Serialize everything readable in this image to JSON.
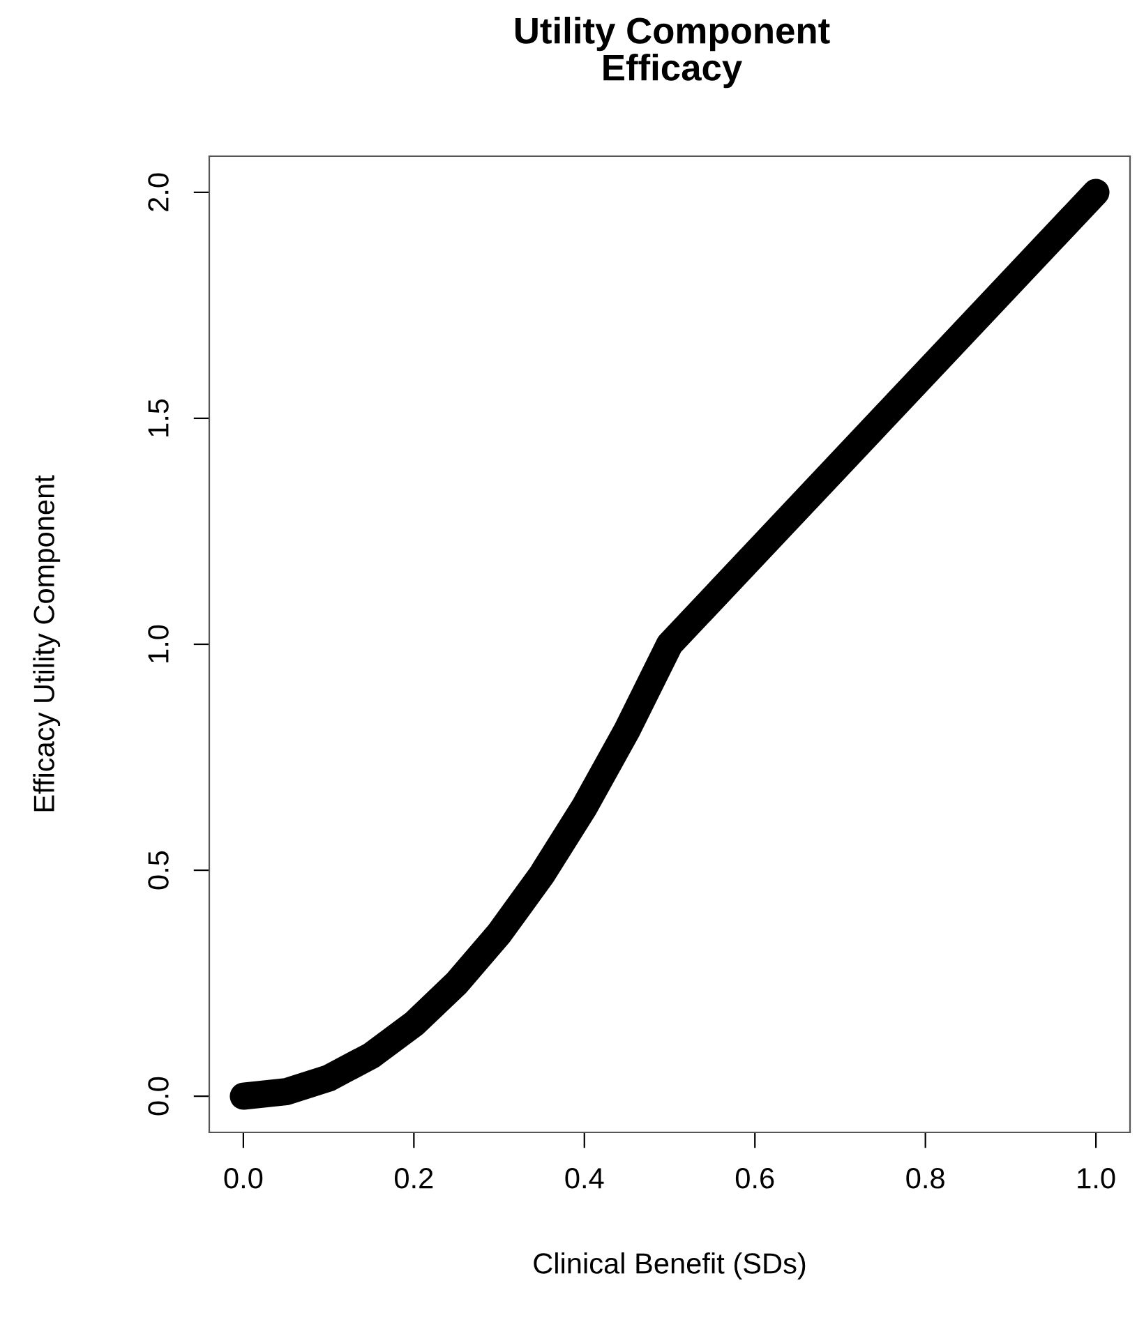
{
  "chart_data": {
    "type": "line",
    "title": "Utility Component\nEfficacy",
    "xlabel": "Clinical Benefit (SDs)",
    "ylabel": "Efficacy Utility Component",
    "x": [
      0,
      0.05,
      0.1,
      0.15,
      0.2,
      0.25,
      0.3,
      0.35,
      0.4,
      0.45,
      0.5,
      0.75,
      1.0
    ],
    "series": [
      {
        "color": "#000000",
        "values": [
          0,
          0.01,
          0.04,
          0.09,
          0.16,
          0.25,
          0.36,
          0.49,
          0.64,
          0.81,
          1.0,
          1.5,
          2.0
        ]
      }
    ],
    "xlim": [
      -0.04,
      1.04
    ],
    "ylim": [
      -0.08,
      2.08
    ],
    "xticks": [
      {
        "value": 0,
        "label": "0.0"
      },
      0.2,
      0.4,
      0.6,
      0.8,
      {
        "value": 1,
        "label": "1.0"
      }
    ],
    "yticks": [
      {
        "value": 0,
        "label": "0.0"
      },
      0.5,
      {
        "value": 1,
        "label": "1.0"
      },
      1.5,
      {
        "value": 2,
        "label": "2.0"
      }
    ],
    "grid": false,
    "legend": false,
    "line_style": "solid"
  }
}
